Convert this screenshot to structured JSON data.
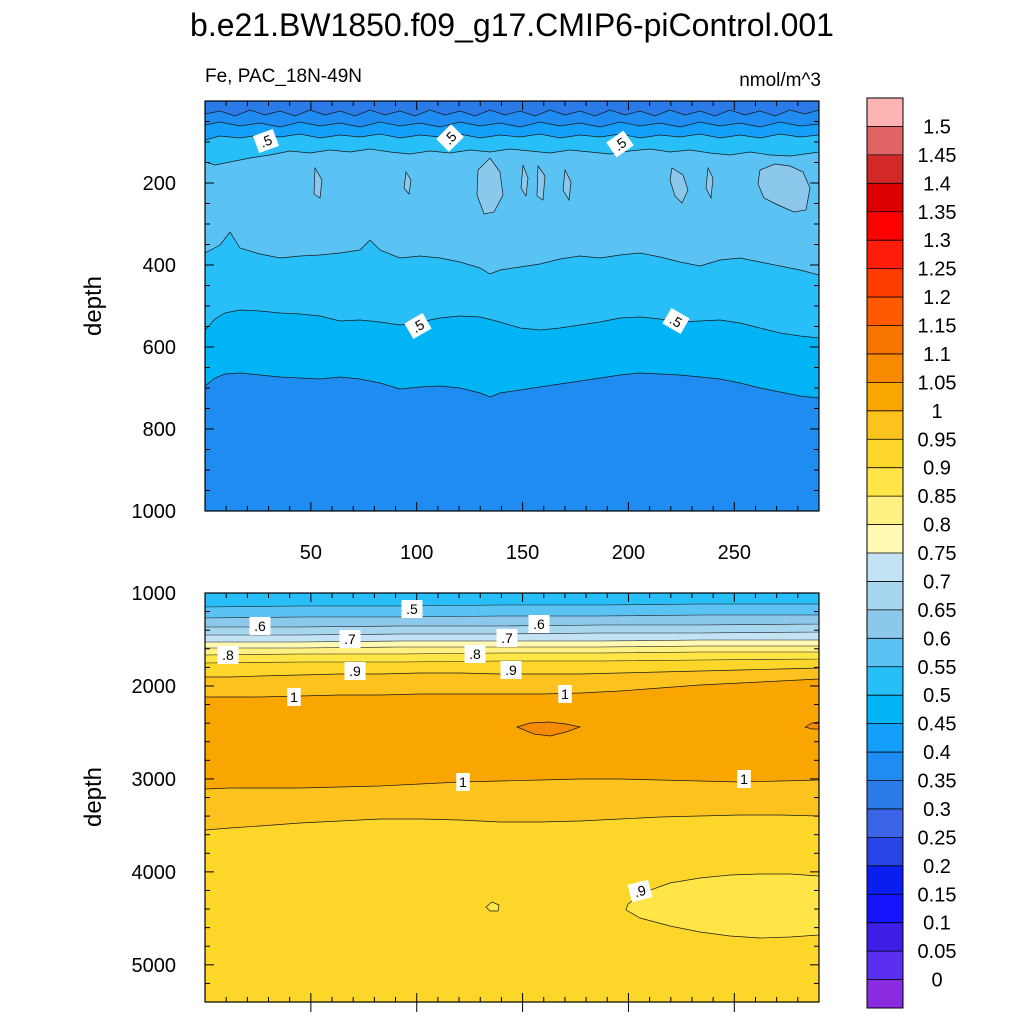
{
  "chart_data": {
    "type": "contour",
    "title": "b.e21.BW1850.f09_g17.CMIP6-piControl.001",
    "variable_label": "Fe, PAC_18N-49N",
    "units_label": "nmol/m^3",
    "colorbar": {
      "levels": [
        "0",
        "0.05",
        "0.1",
        "0.15",
        "0.2",
        "0.25",
        "0.3",
        "0.35",
        "0.4",
        "0.45",
        "0.5",
        "0.55",
        "0.6",
        "0.65",
        "0.7",
        "0.75",
        "0.8",
        "0.85",
        "0.9",
        "0.95",
        "1",
        "1.05",
        "1.1",
        "1.15",
        "1.2",
        "1.25",
        "1.3",
        "1.35",
        "1.4",
        "1.45",
        "1.5"
      ],
      "colors": [
        "#8a2be2",
        "#5b2ff0",
        "#3c1ee6",
        "#1414ff",
        "#0a1ef0",
        "#2846e8",
        "#3c64e6",
        "#2a7ae8",
        "#1e8cf0",
        "#14a0fa",
        "#00b4f5",
        "#28bef8",
        "#5ac3f3",
        "#8cc8eb",
        "#a7d6ef",
        "#c3e3f4",
        "#fff9b4",
        "#fff082",
        "#ffe646",
        "#fcd72a",
        "#fcc21e",
        "#f9a600",
        "#f68a00",
        "#f77400",
        "#ff5a00",
        "#ff3c00",
        "#ff1e0a",
        "#ff0000",
        "#dc0000",
        "#d22828",
        "#e16464",
        "#ffb4b4"
      ]
    },
    "panels": [
      {
        "name": "upper",
        "ylabel": "depth",
        "x_range": [
          0,
          290
        ],
        "y_range": [
          0,
          1000
        ],
        "x_ticks": [
          "50",
          "100",
          "150",
          "200",
          "250"
        ],
        "y_ticks": [
          "200",
          "400",
          "600",
          "800",
          "1000"
        ],
        "contour_labels": [
          ".5",
          ".5",
          ".5",
          ".5",
          ".5"
        ]
      },
      {
        "name": "lower",
        "ylabel": "depth",
        "x_range": [
          0,
          290
        ],
        "y_range": [
          1000,
          5400
        ],
        "y_ticks": [
          "1000",
          "2000",
          "3000",
          "4000",
          "5000"
        ],
        "contour_labels": [
          ".5",
          ".6",
          ".6",
          ".7",
          ".7",
          ".8",
          ".8",
          ".9",
          ".9",
          "1",
          "1",
          "1",
          "1",
          ".9"
        ]
      }
    ]
  }
}
